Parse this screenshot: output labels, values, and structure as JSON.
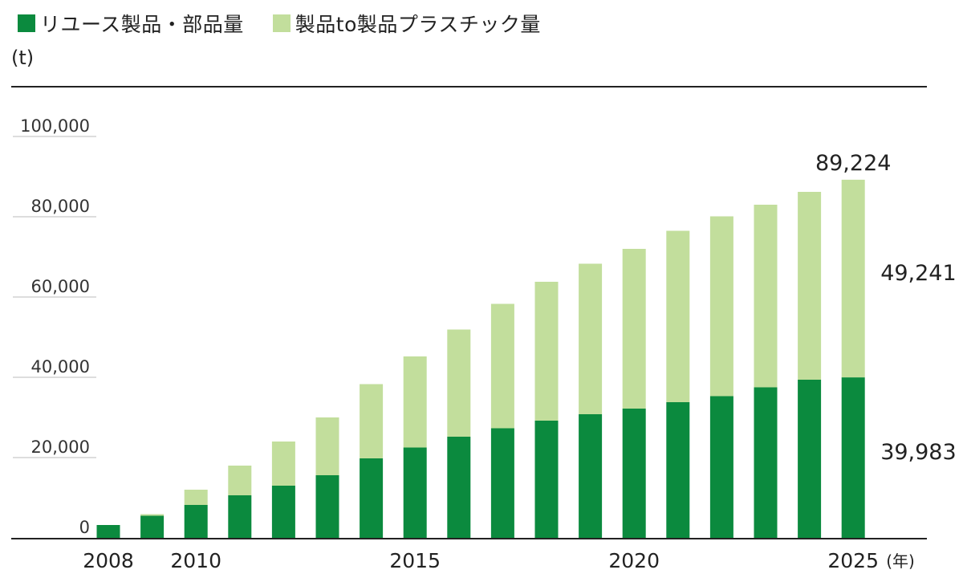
{
  "colors": {
    "reuse": "#0b8a3e",
    "plastic": "#c2de9c",
    "axis": "#222222",
    "grid": "#bbbbbb"
  },
  "unit_label": "(t)",
  "chart_data": {
    "type": "bar",
    "stacked": true,
    "legend_position": "top-left",
    "years": [
      2008,
      2009,
      2010,
      2011,
      2012,
      2013,
      2014,
      2015,
      2016,
      2017,
      2018,
      2019,
      2020,
      2021,
      2022,
      2023,
      2024,
      2025
    ],
    "series": [
      {
        "name": "リユース製品・部品量",
        "color": "#0b8a3e",
        "values": [
          3200,
          5500,
          8200,
          10600,
          13000,
          15600,
          19800,
          22500,
          25200,
          27300,
          29200,
          30800,
          32200,
          33800,
          35300,
          37500,
          39400,
          39983
        ]
      },
      {
        "name": "製品to製品プラスチック量",
        "color": "#c2de9c",
        "values": [
          0,
          400,
          3800,
          7400,
          11000,
          14400,
          18500,
          22700,
          26700,
          31000,
          34600,
          37500,
          39800,
          42700,
          44800,
          45500,
          46800,
          49241
        ]
      }
    ],
    "ylim": [
      0,
      105000
    ],
    "y_ticks": [
      "0",
      "20,000",
      "40,000",
      "60,000",
      "80,000",
      "100,000"
    ],
    "y_tick_values": [
      0,
      20000,
      40000,
      60000,
      80000,
      100000
    ],
    "x_tick_labels": [
      {
        "year": 2008,
        "label": "2008"
      },
      {
        "year": 2010,
        "label": "2010"
      },
      {
        "year": 2015,
        "label": "2015"
      },
      {
        "year": 2020,
        "label": "2020"
      },
      {
        "year": 2025,
        "label": "2025"
      }
    ],
    "x_unit": "(年)",
    "annotations": {
      "total": "89,224",
      "plastic": "49,241",
      "reuse": "39,983"
    }
  }
}
